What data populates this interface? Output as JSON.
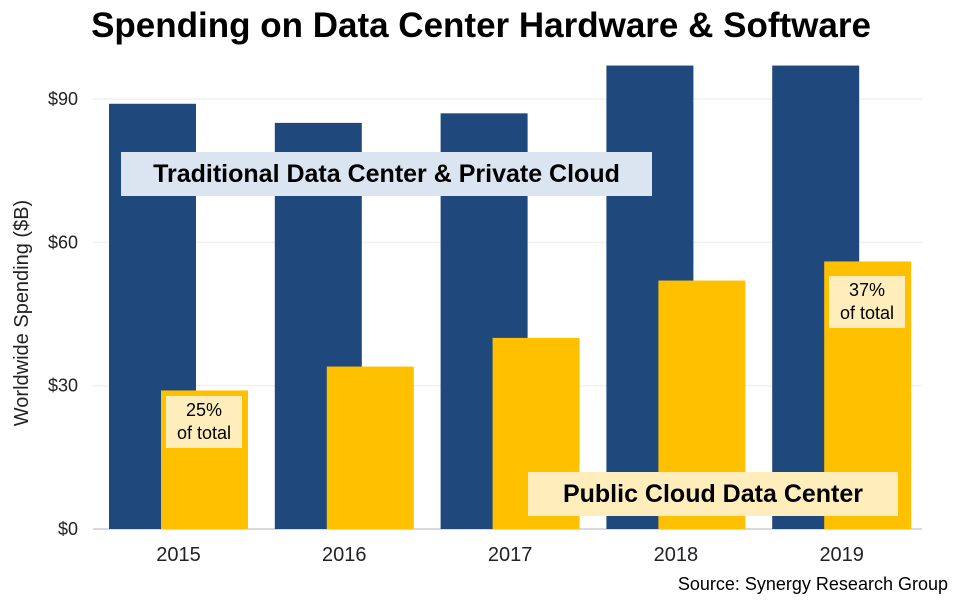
{
  "chart_data": {
    "type": "bar",
    "title": "Spending on Data Center Hardware & Software",
    "xlabel": "",
    "ylabel": "Worldwide Spending  ($B)",
    "categories": [
      "2015",
      "2016",
      "2017",
      "2018",
      "2019"
    ],
    "series": [
      {
        "name": "Traditional Data Center & Private Cloud",
        "color": "#1f497d",
        "values": [
          89,
          85,
          87,
          97,
          97
        ]
      },
      {
        "name": "Public Cloud Data Center",
        "color": "#ffc000",
        "values": [
          29,
          34,
          40,
          52,
          56
        ]
      }
    ],
    "ylim": [
      0,
      97
    ],
    "yticks": [
      0,
      30,
      60,
      90
    ],
    "ytick_labels": [
      "$0",
      "$30",
      "$60",
      "$90"
    ],
    "grid": true,
    "annotations": [
      {
        "text_line1": "25%",
        "text_line2": "of total",
        "category": "2015"
      },
      {
        "text_line1": "37%",
        "text_line2": "of total",
        "category": "2019"
      }
    ],
    "series_labels": {
      "traditional": "Traditional Data Center & Private Cloud",
      "public": "Public Cloud Data Center"
    },
    "source": "Source: Synergy Research Group"
  }
}
